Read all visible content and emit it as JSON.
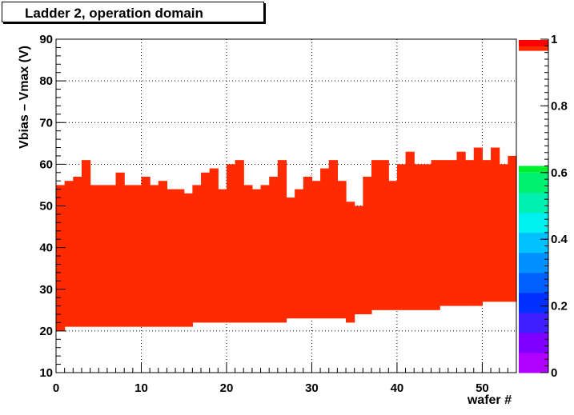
{
  "chart_data": {
    "type": "heatmap",
    "title": "Ladder  2, operation domain",
    "xlabel": "wafer #",
    "ylabel": "Vbias – Vmax (V)",
    "xlim": [
      0,
      54
    ],
    "ylim": [
      10,
      90
    ],
    "x_ticks": [
      "0",
      "10",
      "20",
      "30",
      "40",
      "50"
    ],
    "y_ticks": [
      "10",
      "20",
      "30",
      "40",
      "50",
      "60",
      "70",
      "80",
      "90"
    ],
    "colorbar_ticks": [
      "0",
      "0.2",
      "0.4",
      "0.6",
      "0.8",
      "1"
    ],
    "grid": true,
    "fill_color": "#ff2a00",
    "series": [
      {
        "lower": [
          20,
          21,
          21,
          21,
          21,
          21,
          21,
          21,
          21,
          21,
          21,
          21,
          21,
          21,
          21,
          21,
          22,
          22,
          22,
          22,
          22,
          22,
          22,
          22,
          22,
          22,
          22,
          23,
          23,
          23,
          23,
          23,
          23,
          23,
          22,
          24,
          24,
          25,
          25,
          25,
          25,
          25,
          25,
          25,
          25,
          26,
          26,
          26,
          26,
          26,
          27,
          27,
          27,
          27
        ],
        "upper": [
          55,
          56,
          57,
          61,
          55,
          55,
          55,
          58,
          55,
          55,
          57,
          55,
          56,
          54,
          54,
          53,
          55,
          58,
          59,
          54,
          60,
          61,
          55,
          54,
          55,
          57,
          61,
          52,
          54,
          57,
          56,
          59,
          61,
          56,
          51,
          50,
          57,
          61,
          61,
          56,
          60,
          63,
          60,
          60,
          61,
          61,
          61,
          63,
          61,
          64,
          61,
          64,
          60,
          62
        ]
      }
    ]
  }
}
